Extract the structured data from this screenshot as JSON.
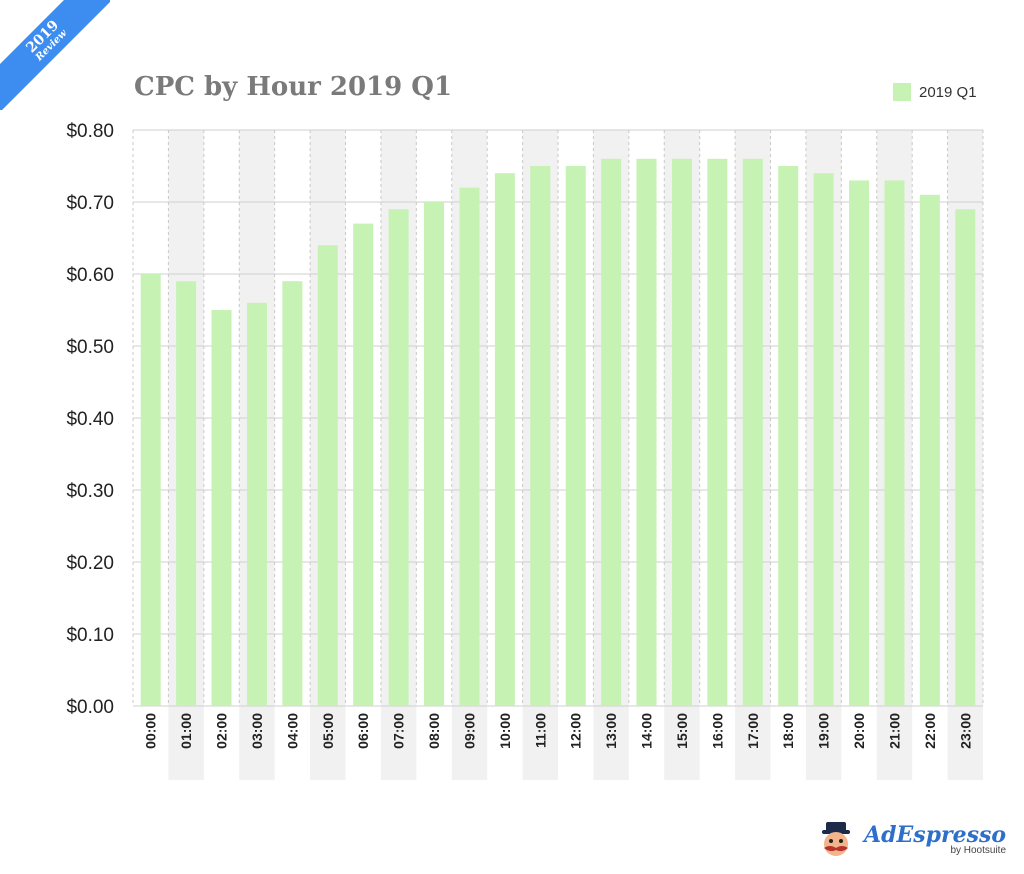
{
  "badge": {
    "year": "2019",
    "label": "Review"
  },
  "brand": {
    "name": "AdEspresso",
    "sub": "by Hootsuite"
  },
  "chart_data": {
    "type": "bar",
    "title": "CPC by Hour 2019 Q1",
    "xlabel": "",
    "ylabel": "",
    "ylim": [
      0,
      0.8
    ],
    "y_ticks": [
      "$0.00",
      "$0.10",
      "$0.20",
      "$0.30",
      "$0.40",
      "$0.50",
      "$0.60",
      "$0.70",
      "$0.80"
    ],
    "categories": [
      "00:00",
      "01:00",
      "02:00",
      "03:00",
      "04:00",
      "05:00",
      "06:00",
      "07:00",
      "08:00",
      "09:00",
      "10:00",
      "11:00",
      "12:00",
      "13:00",
      "14:00",
      "15:00",
      "16:00",
      "17:00",
      "18:00",
      "19:00",
      "20:00",
      "21:00",
      "22:00",
      "23:00"
    ],
    "series": [
      {
        "name": "2019 Q1",
        "color": "#c6f2b4",
        "values": [
          0.6,
          0.59,
          0.55,
          0.56,
          0.59,
          0.64,
          0.67,
          0.69,
          0.7,
          0.72,
          0.74,
          0.75,
          0.75,
          0.76,
          0.76,
          0.76,
          0.76,
          0.76,
          0.75,
          0.74,
          0.73,
          0.73,
          0.71,
          0.69
        ]
      }
    ],
    "grid": true,
    "legend_position": "top-right"
  }
}
